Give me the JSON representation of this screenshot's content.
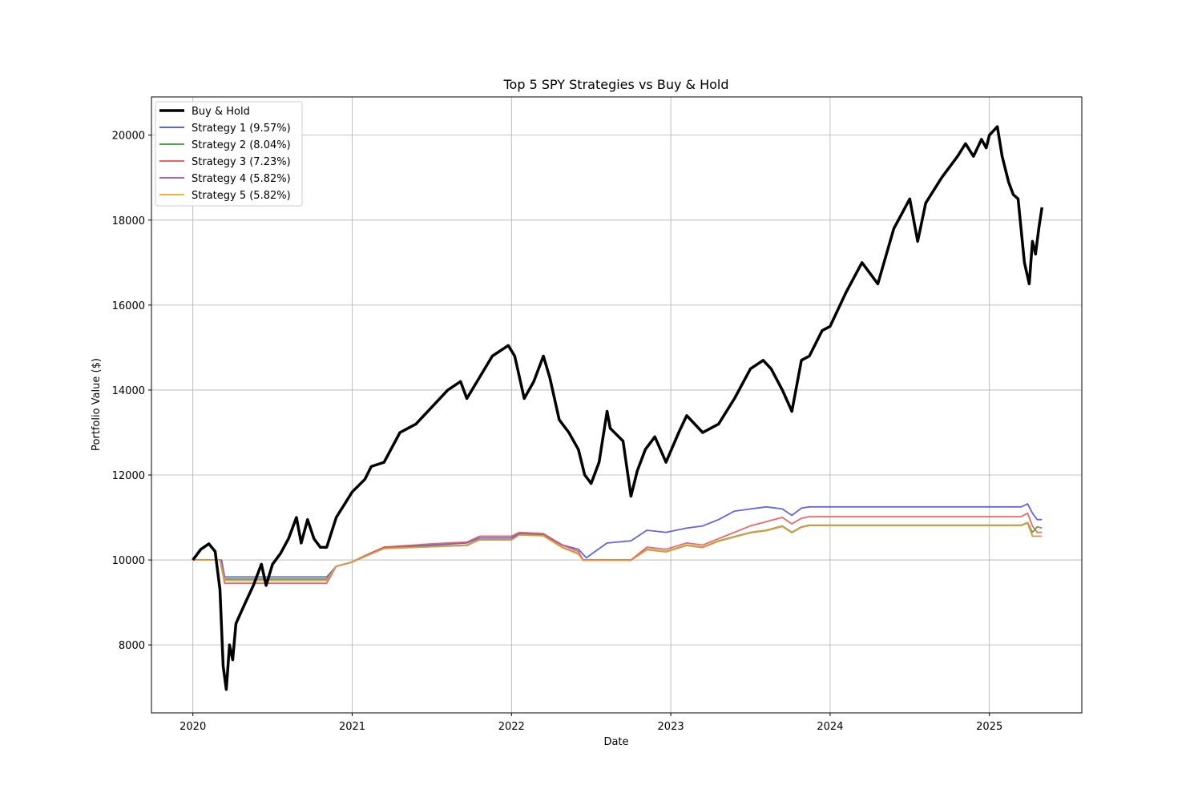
{
  "chart_data": {
    "type": "line",
    "title": "Top 5 SPY Strategies vs Buy & Hold",
    "xlabel": "Date",
    "ylabel": "Portfolio Value ($)",
    "xlim": [
      2019.74,
      2025.58
    ],
    "ylim": [
      6400,
      20900
    ],
    "xticks": [
      2020,
      2021,
      2022,
      2023,
      2024,
      2025
    ],
    "xtick_labels": [
      "2020",
      "2021",
      "2022",
      "2023",
      "2024",
      "2025"
    ],
    "yticks": [
      8000,
      10000,
      12000,
      14000,
      16000,
      18000,
      20000
    ],
    "ytick_labels": [
      "8000",
      "10000",
      "12000",
      "14000",
      "16000",
      "18000",
      "20000"
    ],
    "grid": true,
    "legend_position": "upper-left",
    "series": [
      {
        "name": "Buy & Hold",
        "color": "#000000",
        "width": 3.5,
        "x": [
          2020.0,
          2020.05,
          2020.1,
          2020.14,
          2020.17,
          2020.19,
          2020.21,
          2020.23,
          2020.25,
          2020.27,
          2020.3,
          2020.33,
          2020.38,
          2020.43,
          2020.46,
          2020.5,
          2020.55,
          2020.6,
          2020.65,
          2020.68,
          2020.72,
          2020.76,
          2020.8,
          2020.84,
          2020.9,
          2021.0,
          2021.08,
          2021.12,
          2021.2,
          2021.3,
          2021.4,
          2021.5,
          2021.6,
          2021.68,
          2021.72,
          2021.8,
          2021.88,
          2021.98,
          2022.02,
          2022.08,
          2022.14,
          2022.2,
          2022.24,
          2022.3,
          2022.36,
          2022.42,
          2022.46,
          2022.5,
          2022.55,
          2022.6,
          2022.62,
          2022.7,
          2022.75,
          2022.79,
          2022.84,
          2022.9,
          2022.97,
          2023.05,
          2023.1,
          2023.2,
          2023.3,
          2023.4,
          2023.5,
          2023.58,
          2023.63,
          2023.7,
          2023.76,
          2023.82,
          2023.87,
          2023.95,
          2024.0,
          2024.1,
          2024.2,
          2024.3,
          2024.4,
          2024.5,
          2024.55,
          2024.6,
          2024.7,
          2024.8,
          2024.85,
          2024.9,
          2024.95,
          2024.98,
          2025.0,
          2025.05,
          2025.08,
          2025.12,
          2025.15,
          2025.18,
          2025.22,
          2025.25,
          2025.27,
          2025.29,
          2025.31,
          2025.33
        ],
        "y": [
          10000,
          10250,
          10380,
          10200,
          9300,
          7500,
          6950,
          8000,
          7650,
          8500,
          8750,
          9000,
          9400,
          9900,
          9400,
          9900,
          10150,
          10500,
          11000,
          10400,
          10950,
          10500,
          10300,
          10300,
          11000,
          11600,
          11900,
          12200,
          12300,
          13000,
          13200,
          13600,
          14000,
          14200,
          13800,
          14300,
          14800,
          15050,
          14800,
          13800,
          14200,
          14800,
          14300,
          13300,
          13000,
          12600,
          12000,
          11800,
          12300,
          13500,
          13100,
          12800,
          11500,
          12100,
          12600,
          12900,
          12300,
          13000,
          13400,
          13000,
          13200,
          13800,
          14500,
          14700,
          14500,
          14000,
          13500,
          14700,
          14800,
          15400,
          15500,
          16300,
          17000,
          16500,
          17800,
          18500,
          17500,
          18400,
          19000,
          19500,
          19800,
          19500,
          19900,
          19700,
          20000,
          20200,
          19500,
          18900,
          18600,
          18500,
          17000,
          16500,
          17500,
          17200,
          17800,
          18300
        ]
      },
      {
        "name": "Strategy 1 (9.57%)",
        "color": "#4848f0",
        "width": 1.8,
        "x": [
          2020.0,
          2020.18,
          2020.2,
          2020.84,
          2020.9,
          2021.0,
          2021.08,
          2021.2,
          2021.5,
          2021.72,
          2021.8,
          2022.0,
          2022.05,
          2022.2,
          2022.32,
          2022.42,
          2022.47,
          2022.6,
          2022.75,
          2022.85,
          2022.97,
          2023.1,
          2023.2,
          2023.3,
          2023.4,
          2023.5,
          2023.6,
          2023.7,
          2023.76,
          2023.82,
          2023.87,
          2024.0,
          2025.2,
          2025.24,
          2025.27,
          2025.3,
          2025.33
        ],
        "y": [
          10000,
          10000,
          9600,
          9600,
          9850,
          9950,
          10100,
          10300,
          10350,
          10400,
          10520,
          10520,
          10620,
          10600,
          10350,
          10250,
          10050,
          10400,
          10450,
          10700,
          10650,
          10750,
          10800,
          10950,
          11150,
          11200,
          11250,
          11200,
          11050,
          11220,
          11250,
          11250,
          11250,
          11320,
          11100,
          10950,
          10950
        ]
      },
      {
        "name": "Strategy 2 (8.04%)",
        "color": "#2ca02c",
        "width": 1.8,
        "x": [
          2020.0,
          2020.17,
          2020.2,
          2020.84,
          2020.9,
          2021.0,
          2021.08,
          2021.2,
          2021.5,
          2021.72,
          2021.8,
          2022.0,
          2022.05,
          2022.2,
          2022.32,
          2022.42,
          2022.45,
          2022.75,
          2022.85,
          2022.97,
          2023.1,
          2023.2,
          2023.3,
          2023.4,
          2023.5,
          2023.6,
          2023.7,
          2023.76,
          2023.82,
          2023.87,
          2024.0,
          2025.2,
          2025.24,
          2025.27,
          2025.3,
          2025.33
        ],
        "y": [
          10000,
          10000,
          9550,
          9550,
          9850,
          9950,
          10080,
          10280,
          10320,
          10350,
          10480,
          10480,
          10600,
          10580,
          10300,
          10150,
          10000,
          10000,
          10250,
          10200,
          10350,
          10300,
          10450,
          10550,
          10650,
          10700,
          10800,
          10650,
          10780,
          10820,
          10820,
          10820,
          10880,
          10650,
          10780,
          10750
        ]
      },
      {
        "name": "Strategy 3 (7.23%)",
        "color": "#f24a4a",
        "width": 1.8,
        "x": [
          2020.0,
          2020.17,
          2020.2,
          2020.84,
          2020.9,
          2021.0,
          2021.08,
          2021.2,
          2021.5,
          2021.72,
          2021.8,
          2022.0,
          2022.05,
          2022.2,
          2022.32,
          2022.42,
          2022.45,
          2022.75,
          2022.85,
          2022.97,
          2023.1,
          2023.2,
          2023.3,
          2023.4,
          2023.5,
          2023.6,
          2023.7,
          2023.76,
          2023.82,
          2023.87,
          2024.0,
          2025.2,
          2025.24,
          2025.27,
          2025.3,
          2025.33
        ],
        "y": [
          10000,
          10000,
          9450,
          9450,
          9850,
          9950,
          10100,
          10300,
          10380,
          10420,
          10560,
          10560,
          10650,
          10620,
          10350,
          10200,
          10000,
          10000,
          10300,
          10250,
          10400,
          10350,
          10500,
          10650,
          10800,
          10900,
          11000,
          10850,
          10980,
          11020,
          11020,
          11020,
          11100,
          10800,
          10650,
          10650
        ]
      },
      {
        "name": "Strategy 4 (5.82%)",
        "color": "#a04fb0",
        "width": 1.8,
        "x": [
          2020.0,
          2020.17,
          2020.2,
          2020.84,
          2020.9,
          2021.0,
          2021.08,
          2021.2,
          2021.5,
          2021.72,
          2021.8,
          2022.0,
          2022.05,
          2022.2,
          2022.32,
          2022.42,
          2022.45,
          2022.75,
          2022.85,
          2022.97,
          2023.1,
          2023.2,
          2023.3,
          2023.4,
          2023.5,
          2023.6,
          2023.7,
          2023.76,
          2023.82,
          2023.87,
          2024.0,
          2025.2,
          2025.24,
          2025.27,
          2025.3,
          2025.33
        ],
        "y": [
          10000,
          10000,
          9520,
          9520,
          9850,
          9950,
          10080,
          10270,
          10310,
          10340,
          10470,
          10470,
          10590,
          10570,
          10290,
          10140,
          9990,
          9990,
          10240,
          10190,
          10340,
          10290,
          10440,
          10540,
          10640,
          10690,
          10790,
          10640,
          10770,
          10810,
          10810,
          10810,
          10870,
          10560,
          10560,
          10560
        ]
      },
      {
        "name": "Strategy 5 (5.82%)",
        "color": "#f5a623",
        "width": 1.8,
        "x": [
          2020.0,
          2020.17,
          2020.2,
          2020.84,
          2020.9,
          2021.0,
          2021.08,
          2021.2,
          2021.5,
          2021.72,
          2021.8,
          2022.0,
          2022.05,
          2022.2,
          2022.32,
          2022.42,
          2022.45,
          2022.75,
          2022.85,
          2022.97,
          2023.1,
          2023.2,
          2023.3,
          2023.4,
          2023.5,
          2023.6,
          2023.7,
          2023.76,
          2023.82,
          2023.87,
          2024.0,
          2025.2,
          2025.24,
          2025.27,
          2025.3,
          2025.33
        ],
        "y": [
          10000,
          10000,
          9520,
          9520,
          9850,
          9950,
          10080,
          10270,
          10310,
          10340,
          10470,
          10470,
          10590,
          10570,
          10290,
          10140,
          9990,
          9990,
          10240,
          10190,
          10340,
          10290,
          10440,
          10540,
          10640,
          10690,
          10790,
          10640,
          10770,
          10810,
          10810,
          10810,
          10870,
          10560,
          10560,
          10560
        ]
      }
    ]
  }
}
